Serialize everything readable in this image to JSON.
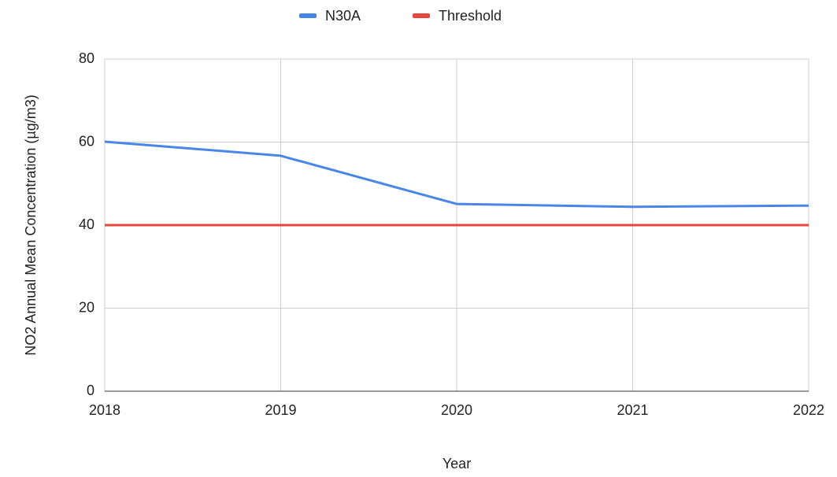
{
  "chart_data": {
    "type": "line",
    "x": [
      2018,
      2019,
      2020,
      2021,
      2022
    ],
    "series": [
      {
        "name": "N30A",
        "color": "#4a86e8",
        "values": [
          60.1,
          56.7,
          45.1,
          44.4,
          44.7
        ]
      },
      {
        "name": "Threshold",
        "color": "#e8453c",
        "values": [
          40,
          40,
          40,
          40,
          40
        ]
      }
    ],
    "xlabel": "Year",
    "ylabel": "NO2 Annual Mean Concentration (µg/m3)",
    "xlim": [
      2018,
      2022
    ],
    "xticks": [
      2018,
      2019,
      2020,
      2021,
      2022
    ],
    "ylim": [
      0,
      80
    ],
    "yticks": [
      0,
      20,
      40,
      60,
      80
    ],
    "grid": true,
    "legend": "top"
  }
}
